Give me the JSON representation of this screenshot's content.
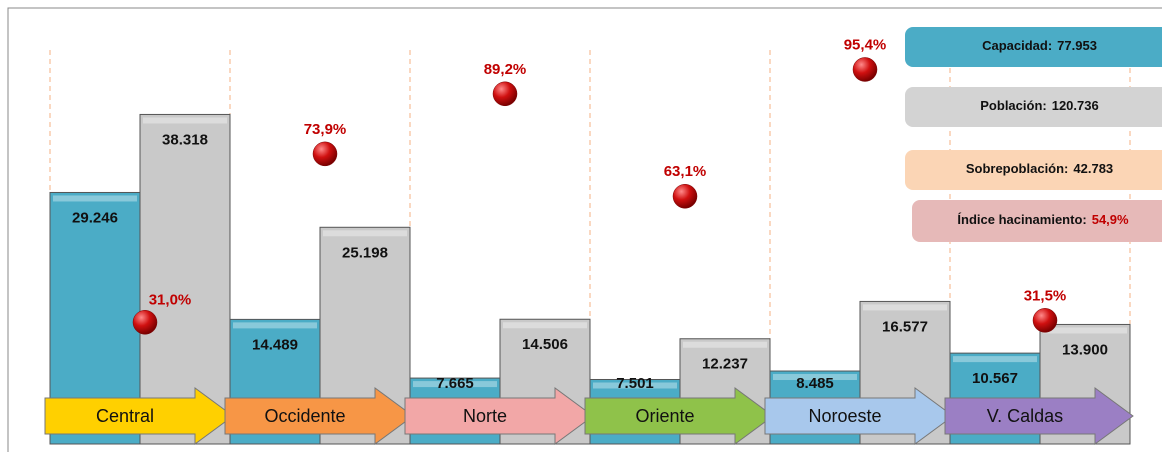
{
  "chart_data": {
    "type": "bar",
    "categories": [
      "Central",
      "Occidente",
      "Norte",
      "Oriente",
      "Noroeste",
      "V. Caldas"
    ],
    "series": [
      {
        "color": "#4bacc6",
        "values": [
          29246,
          14489,
          7665,
          7501,
          8485,
          10567
        ],
        "value_labels": [
          "29.246",
          "14.489",
          "7.665",
          "7.501",
          "8.485",
          "10.567"
        ]
      },
      {
        "color": "#c9c9c9",
        "values": [
          38318,
          25198,
          14506,
          12237,
          16577,
          13900
        ],
        "value_labels": [
          "38.318",
          "25.198",
          "14.506",
          "12.237",
          "16.577",
          "13.900"
        ]
      },
      {
        "type": "scatter",
        "axis": "y2",
        "color": "#c00000",
        "values": [
          31.0,
          73.9,
          89.2,
          63.1,
          95.4,
          31.5
        ],
        "value_labels": [
          "31,0%",
          "73,9%",
          "89,2%",
          "63,1%",
          "95,4%",
          "31,5%"
        ]
      }
    ],
    "ylim": [
      0,
      49300
    ],
    "y2lim": [
      0,
      108
    ],
    "summary": [
      {
        "name": "Capacidad:",
        "value": 77953,
        "label": "77.953",
        "color": "#4bacc6"
      },
      {
        "name": "Población:",
        "value": 120736,
        "label": "120.736",
        "color": "#d3d3d3"
      },
      {
        "name": "Sobrepoblación:",
        "value": 42783,
        "label": "42.783",
        "color": "#fbd5b5"
      },
      {
        "name": "Índice hacinamiento:",
        "value": 54.9,
        "label": "54,9%",
        "color": "#e6b9b8"
      }
    ],
    "category_colors": [
      "#ffd000",
      "#f79646",
      "#f2a7a7",
      "#8fc24a",
      "#a8c8ec",
      "#9b7fc4"
    ]
  }
}
